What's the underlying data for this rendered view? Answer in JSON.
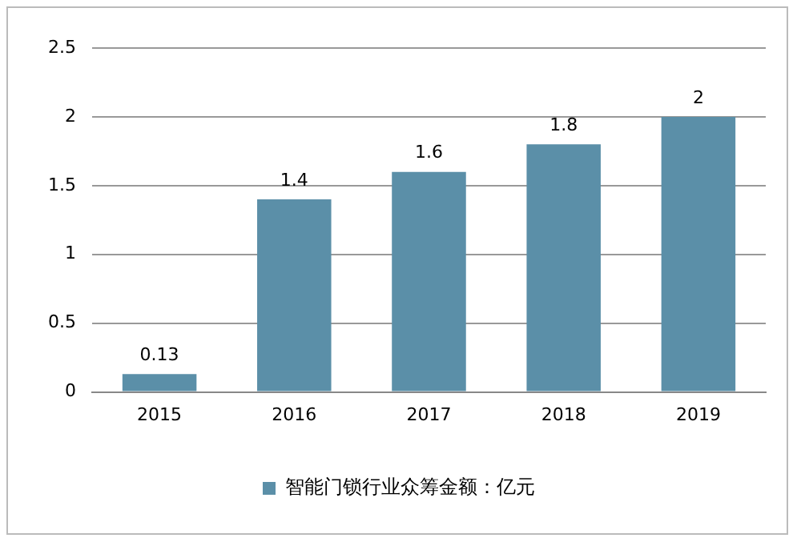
{
  "chart_data": {
    "type": "bar",
    "categories": [
      "2015",
      "2016",
      "2017",
      "2018",
      "2019"
    ],
    "series": [
      {
        "name": "智能门锁行业众筹金额：亿元",
        "color": "#5b8fa8",
        "values": [
          0.13,
          1.4,
          1.6,
          1.8,
          2
        ]
      }
    ],
    "ylim": [
      0,
      2.5
    ],
    "yticks": [
      0,
      0.5,
      1,
      1.5,
      2,
      2.5
    ],
    "grid": "y",
    "legend": "bottom",
    "data_labels": true
  }
}
